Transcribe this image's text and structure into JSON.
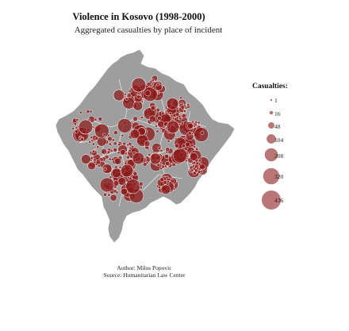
{
  "chart_data": {
    "type": "scatter",
    "title": "Violence in Kosovo (1998-2000)",
    "subtitle": "Aggregated casualties by place of incident",
    "caption_author": "Author: Milos Popovic",
    "caption_source": "Source: Humanitarian Law Center",
    "legend": {
      "title": "Casualties:",
      "placement": "right",
      "breaks": [
        {
          "label": "1",
          "value": 1
        },
        {
          "label": "16",
          "value": 16
        },
        {
          "label": "48",
          "value": 48
        },
        {
          "label": "104",
          "value": 104
        },
        {
          "label": "208",
          "value": 208
        },
        {
          "label": "320",
          "value": 320
        },
        {
          "label": "436",
          "value": 436
        }
      ]
    },
    "colors": {
      "bubble_fill": "#8b1a1a",
      "bubble_stroke": "#ffffff",
      "map_fill": "#9e9e9e",
      "border": "#ffffff"
    }
  }
}
